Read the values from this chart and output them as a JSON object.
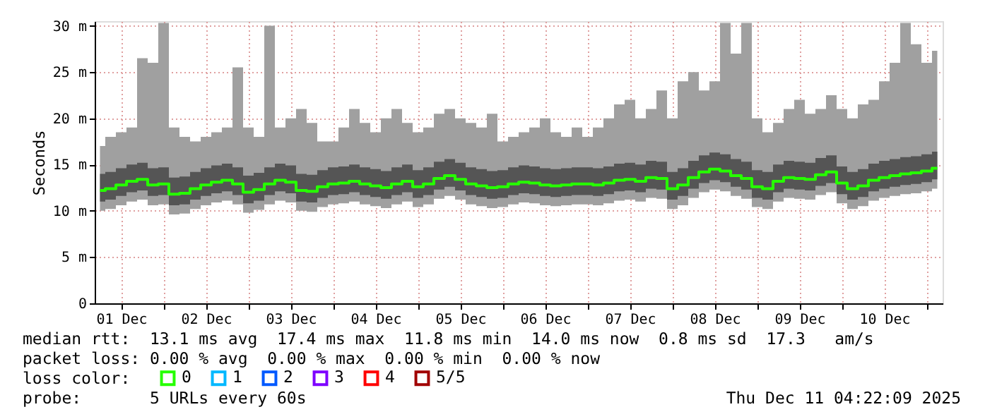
{
  "chart_data": {
    "type": "line",
    "ylabel": "Seconds",
    "legend_title": "loss color:",
    "legend": "bottom",
    "grid": true,
    "xlim": [
      "2025-12-01T04:30",
      "2025-12-11T04:30"
    ],
    "xticks": [
      {
        "value": "2025-12-01T12:00",
        "label": "01 Dec"
      },
      {
        "value": "2025-12-02T12:00",
        "label": "02 Dec"
      },
      {
        "value": "2025-12-03T12:00",
        "label": "03 Dec"
      },
      {
        "value": "2025-12-04T12:00",
        "label": "04 Dec"
      },
      {
        "value": "2025-12-05T12:00",
        "label": "05 Dec"
      },
      {
        "value": "2025-12-06T12:00",
        "label": "06 Dec"
      },
      {
        "value": "2025-12-07T12:00",
        "label": "07 Dec"
      },
      {
        "value": "2025-12-08T12:00",
        "label": "08 Dec"
      },
      {
        "value": "2025-12-09T12:00",
        "label": "09 Dec"
      },
      {
        "value": "2025-12-10T12:00",
        "label": "10 Dec"
      },
      {
        "value": "2025-12-02T00:00",
        "label": null
      },
      {
        "value": "2025-12-03T00:00",
        "label": null
      },
      {
        "value": "2025-12-04T00:00",
        "label": null
      },
      {
        "value": "2025-12-05T00:00",
        "label": null
      },
      {
        "value": "2025-12-06T00:00",
        "label": null
      },
      {
        "value": "2025-12-07T00:00",
        "label": null
      },
      {
        "value": "2025-12-08T00:00",
        "label": null
      },
      {
        "value": "2025-12-09T00:00",
        "label": null
      },
      {
        "value": "2025-12-10T00:00",
        "label": null
      },
      {
        "value": "2025-12-11T00:00",
        "label": null
      }
    ],
    "ylim": [
      0,
      30.5
    ],
    "yticks": [
      0,
      {
        "value": 5,
        "label": "5 m"
      },
      {
        "value": 10,
        "label": "10 m"
      },
      {
        "value": 15,
        "label": "15 m"
      },
      {
        "value": 20,
        "label": "20 m"
      },
      {
        "value": 25,
        "label": "25 m"
      },
      {
        "value": 30,
        "label": "30 m"
      }
    ],
    "x": [
      "2025-12-01T06:00",
      "2025-12-01T09:00",
      "2025-12-01T12:00",
      "2025-12-01T15:00",
      "2025-12-01T18:00",
      "2025-12-01T21:00",
      "2025-12-02T00:00",
      "2025-12-02T03:00",
      "2025-12-02T06:00",
      "2025-12-02T09:00",
      "2025-12-02T12:00",
      "2025-12-02T15:00",
      "2025-12-02T18:00",
      "2025-12-02T21:00",
      "2025-12-03T00:00",
      "2025-12-03T03:00",
      "2025-12-03T06:00",
      "2025-12-03T09:00",
      "2025-12-03T12:00",
      "2025-12-03T15:00",
      "2025-12-03T18:00",
      "2025-12-03T21:00",
      "2025-12-04T00:00",
      "2025-12-04T03:00",
      "2025-12-04T06:00",
      "2025-12-04T09:00",
      "2025-12-04T12:00",
      "2025-12-04T15:00",
      "2025-12-04T18:00",
      "2025-12-04T21:00",
      "2025-12-05T00:00",
      "2025-12-05T03:00",
      "2025-12-05T06:00",
      "2025-12-05T09:00",
      "2025-12-05T12:00",
      "2025-12-05T15:00",
      "2025-12-05T18:00",
      "2025-12-05T21:00",
      "2025-12-06T00:00",
      "2025-12-06T03:00",
      "2025-12-06T06:00",
      "2025-12-06T09:00",
      "2025-12-06T12:00",
      "2025-12-06T15:00",
      "2025-12-06T18:00",
      "2025-12-06T21:00",
      "2025-12-07T00:00",
      "2025-12-07T03:00",
      "2025-12-07T06:00",
      "2025-12-07T09:00",
      "2025-12-07T12:00",
      "2025-12-07T15:00",
      "2025-12-07T18:00",
      "2025-12-07T21:00",
      "2025-12-08T00:00",
      "2025-12-08T03:00",
      "2025-12-08T06:00",
      "2025-12-08T09:00",
      "2025-12-08T12:00",
      "2025-12-08T15:00",
      "2025-12-08T18:00",
      "2025-12-08T21:00",
      "2025-12-09T00:00",
      "2025-12-09T03:00",
      "2025-12-09T06:00",
      "2025-12-09T09:00",
      "2025-12-09T12:00",
      "2025-12-09T15:00",
      "2025-12-09T18:00",
      "2025-12-09T21:00",
      "2025-12-10T00:00",
      "2025-12-10T03:00",
      "2025-12-10T06:00",
      "2025-12-10T09:00",
      "2025-12-10T12:00",
      "2025-12-10T15:00",
      "2025-12-10T18:00",
      "2025-12-10T21:00",
      "2025-12-11T00:00",
      "2025-12-11T03:00"
    ],
    "series": [
      {
        "type": "area",
        "color": "#555555",
        "values": [
          null,
          null,
          null,
          null,
          null,
          null,
          null,
          null,
          null,
          null,
          null,
          null,
          null,
          null,
          null,
          null,
          null,
          null,
          null,
          null,
          null,
          null,
          null,
          null,
          null,
          null,
          null,
          null,
          null,
          null,
          null,
          null,
          null,
          null,
          null,
          null,
          null,
          null,
          null,
          null,
          null,
          null,
          null,
          null,
          null,
          null,
          null,
          null,
          null,
          null,
          null,
          null,
          null,
          null,
          null,
          null,
          null,
          null,
          null,
          null,
          null,
          null,
          null,
          null,
          null,
          null,
          null,
          null,
          null,
          null,
          null,
          null,
          null,
          null,
          null,
          null,
          null,
          null,
          null,
          null
        ],
        "lower": [
          11.0,
          11.2,
          11.6,
          12.0,
          12.2,
          11.6,
          11.7,
          10.6,
          10.7,
          11.2,
          11.6,
          11.9,
          12.1,
          11.7,
          10.8,
          11.1,
          11.7,
          12.1,
          11.9,
          11.0,
          10.9,
          11.4,
          11.7,
          11.8,
          12.0,
          11.7,
          11.5,
          11.3,
          11.7,
          12.0,
          11.4,
          11.7,
          12.3,
          12.6,
          12.2,
          11.7,
          11.5,
          11.3,
          11.4,
          11.7,
          11.9,
          11.8,
          11.6,
          11.5,
          11.6,
          11.7,
          11.7,
          11.6,
          11.8,
          12.1,
          12.2,
          12.0,
          12.4,
          12.3,
          11.2,
          11.6,
          12.4,
          13.0,
          13.3,
          13.1,
          12.6,
          12.3,
          11.4,
          11.2,
          12.0,
          12.4,
          12.3,
          12.2,
          12.7,
          13.0,
          11.8,
          11.2,
          11.5,
          12.1,
          12.4,
          12.6,
          12.8,
          12.9,
          13.1,
          13.4
        ],
        "upper": [
          14.0,
          14.2,
          14.6,
          15.0,
          15.2,
          14.6,
          14.7,
          13.6,
          13.7,
          14.2,
          14.6,
          14.9,
          15.1,
          14.7,
          13.8,
          14.1,
          14.7,
          15.1,
          14.9,
          14.0,
          13.9,
          14.4,
          14.7,
          14.8,
          15.0,
          14.7,
          14.5,
          14.3,
          14.7,
          15.0,
          14.4,
          14.7,
          15.3,
          15.6,
          15.2,
          14.7,
          14.5,
          14.3,
          14.4,
          14.7,
          14.9,
          14.8,
          14.6,
          14.5,
          14.6,
          14.7,
          14.7,
          14.6,
          14.8,
          15.1,
          15.2,
          15.0,
          15.4,
          15.3,
          14.2,
          14.6,
          15.4,
          16.0,
          16.3,
          16.1,
          15.6,
          15.3,
          14.4,
          14.2,
          15.0,
          15.4,
          15.3,
          15.2,
          15.7,
          16.0,
          14.8,
          14.2,
          14.5,
          15.1,
          15.4,
          15.6,
          15.8,
          15.9,
          16.1,
          16.4
        ]
      },
      {
        "name": "0",
        "color": "#26ff00",
        "values": [
          12.2,
          12.4,
          12.8,
          13.2,
          13.4,
          12.8,
          12.9,
          11.8,
          11.9,
          12.4,
          12.8,
          13.1,
          13.3,
          12.9,
          12.0,
          12.3,
          12.9,
          13.3,
          13.1,
          12.2,
          12.1,
          12.6,
          12.9,
          13.0,
          13.2,
          12.9,
          12.7,
          12.5,
          12.9,
          13.2,
          12.6,
          12.9,
          13.5,
          13.8,
          13.4,
          12.9,
          12.7,
          12.5,
          12.6,
          12.9,
          13.1,
          13.0,
          12.8,
          12.7,
          12.8,
          12.9,
          12.9,
          12.8,
          13.0,
          13.3,
          13.4,
          13.2,
          13.6,
          13.5,
          12.4,
          12.8,
          13.6,
          14.2,
          14.5,
          14.3,
          13.8,
          13.5,
          12.6,
          12.4,
          13.2,
          13.6,
          13.5,
          13.4,
          13.9,
          14.2,
          13.0,
          12.4,
          12.7,
          13.3,
          13.6,
          13.8,
          14.0,
          14.1,
          14.3,
          14.6
        ],
        "lower": [
          10.0,
          10.2,
          10.6,
          11.0,
          11.2,
          10.6,
          10.7,
          9.6,
          9.7,
          10.2,
          10.6,
          10.9,
          11.1,
          10.7,
          9.8,
          10.1,
          10.7,
          11.1,
          10.9,
          10.0,
          9.9,
          10.4,
          10.7,
          10.8,
          11.0,
          10.7,
          10.5,
          10.3,
          10.7,
          11.0,
          10.4,
          10.7,
          11.3,
          11.6,
          11.2,
          10.7,
          10.5,
          10.3,
          10.4,
          10.7,
          10.9,
          10.8,
          10.6,
          10.5,
          10.6,
          10.7,
          10.7,
          10.6,
          10.8,
          11.1,
          11.2,
          11.0,
          11.4,
          11.3,
          10.2,
          10.6,
          11.4,
          12.0,
          12.3,
          12.1,
          11.6,
          11.3,
          10.4,
          10.2,
          11.0,
          11.4,
          11.3,
          11.2,
          11.7,
          12.0,
          10.8,
          10.2,
          10.5,
          11.1,
          11.4,
          11.6,
          11.8,
          11.9,
          12.1,
          12.4
        ],
        "upper": [
          17,
          18,
          18.5,
          19,
          26.5,
          26,
          30.3,
          19,
          18,
          17.5,
          18,
          18.5,
          19,
          25.5,
          19,
          18,
          30,
          19,
          20,
          21,
          19.5,
          17.5,
          17.5,
          19,
          21,
          19.5,
          18.5,
          20,
          21,
          19.5,
          18.5,
          19,
          20.5,
          21,
          20,
          19.5,
          19,
          20.5,
          17.5,
          18,
          18.5,
          19,
          20,
          18.5,
          18,
          19,
          18,
          19,
          20,
          21.5,
          22,
          20,
          21,
          23,
          20,
          24,
          25,
          23,
          24,
          30.3,
          27,
          30.3,
          20,
          18.5,
          19.5,
          21,
          22,
          20.5,
          21,
          22.5,
          21,
          20,
          21.5,
          22,
          24,
          26,
          30.3,
          28,
          26,
          27.3
        ]
      },
      {
        "name": "1",
        "color": "#00b8ff",
        "values": [
          null,
          null,
          null,
          null,
          null,
          null,
          null,
          null,
          null,
          null,
          null,
          null,
          null,
          null,
          null,
          null,
          null,
          null,
          null,
          null,
          null,
          null,
          null,
          null,
          null,
          null,
          null,
          null,
          null,
          null,
          null,
          null,
          null,
          null,
          null,
          null,
          null,
          null,
          null,
          null,
          null,
          null,
          null,
          null,
          null,
          null,
          null,
          null,
          null,
          null,
          null,
          null,
          null,
          null,
          null,
          null,
          null,
          null,
          null,
          null,
          null,
          null,
          null,
          null,
          null,
          null,
          null,
          null,
          null,
          null,
          null,
          null,
          null,
          null,
          null,
          null,
          null,
          null,
          null,
          null
        ]
      },
      {
        "name": "2",
        "color": "#0059ff",
        "values": [
          null,
          null,
          null,
          null,
          null,
          null,
          null,
          null,
          null,
          null,
          null,
          null,
          null,
          null,
          null,
          null,
          null,
          null,
          null,
          null,
          null,
          null,
          null,
          null,
          null,
          null,
          null,
          null,
          null,
          null,
          null,
          null,
          null,
          null,
          null,
          null,
          null,
          null,
          null,
          null,
          null,
          null,
          null,
          null,
          null,
          null,
          null,
          null,
          null,
          null,
          null,
          null,
          null,
          null,
          null,
          null,
          null,
          null,
          null,
          null,
          null,
          null,
          null,
          null,
          null,
          null,
          null,
          null,
          null,
          null,
          null,
          null,
          null,
          null,
          null,
          null,
          null,
          null,
          null,
          null
        ]
      },
      {
        "name": "3",
        "color": "#7e00ff",
        "values": [
          null,
          null,
          null,
          null,
          null,
          null,
          null,
          null,
          null,
          null,
          null,
          null,
          null,
          null,
          null,
          null,
          null,
          null,
          null,
          null,
          null,
          null,
          null,
          null,
          null,
          null,
          null,
          null,
          null,
          null,
          null,
          null,
          null,
          null,
          null,
          null,
          null,
          null,
          null,
          null,
          null,
          null,
          null,
          null,
          null,
          null,
          null,
          null,
          null,
          null,
          null,
          null,
          null,
          null,
          null,
          null,
          null,
          null,
          null,
          null,
          null,
          null,
          null,
          null,
          null,
          null,
          null,
          null,
          null,
          null,
          null,
          null,
          null,
          null,
          null,
          null,
          null,
          null,
          null,
          null
        ]
      },
      {
        "name": "4",
        "color": "#ff0000",
        "values": [
          null,
          null,
          null,
          null,
          null,
          null,
          null,
          null,
          null,
          null,
          null,
          null,
          null,
          null,
          null,
          null,
          null,
          null,
          null,
          null,
          null,
          null,
          null,
          null,
          null,
          null,
          null,
          null,
          null,
          null,
          null,
          null,
          null,
          null,
          null,
          null,
          null,
          null,
          null,
          null,
          null,
          null,
          null,
          null,
          null,
          null,
          null,
          null,
          null,
          null,
          null,
          null,
          null,
          null,
          null,
          null,
          null,
          null,
          null,
          null,
          null,
          null,
          null,
          null,
          null,
          null,
          null,
          null,
          null,
          null,
          null,
          null,
          null,
          null,
          null,
          null,
          null,
          null,
          null,
          null
        ]
      },
      {
        "name": "5/5",
        "color": "#a10000",
        "values": [
          null,
          null,
          null,
          null,
          null,
          null,
          null,
          null,
          null,
          null,
          null,
          null,
          null,
          null,
          null,
          null,
          null,
          null,
          null,
          null,
          null,
          null,
          null,
          null,
          null,
          null,
          null,
          null,
          null,
          null,
          null,
          null,
          null,
          null,
          null,
          null,
          null,
          null,
          null,
          null,
          null,
          null,
          null,
          null,
          null,
          null,
          null,
          null,
          null,
          null,
          null,
          null,
          null,
          null,
          null,
          null,
          null,
          null,
          null,
          null,
          null,
          null,
          null,
          null,
          null,
          null,
          null,
          null,
          null,
          null,
          null,
          null,
          null,
          null,
          null,
          null,
          null,
          null,
          null,
          null
        ]
      }
    ],
    "annotations": [
      "median rtt:  13.1 ms avg  17.4 ms max  11.8 ms min  14.0 ms now  0.8 ms sd  17.3   am/s",
      "packet loss: 0.00 % avg  0.00 % max  0.00 % min  0.00 % now",
      "probe:       5 URLs every 60s",
      "Thu Dec 11 04:22:09 2025"
    ]
  }
}
